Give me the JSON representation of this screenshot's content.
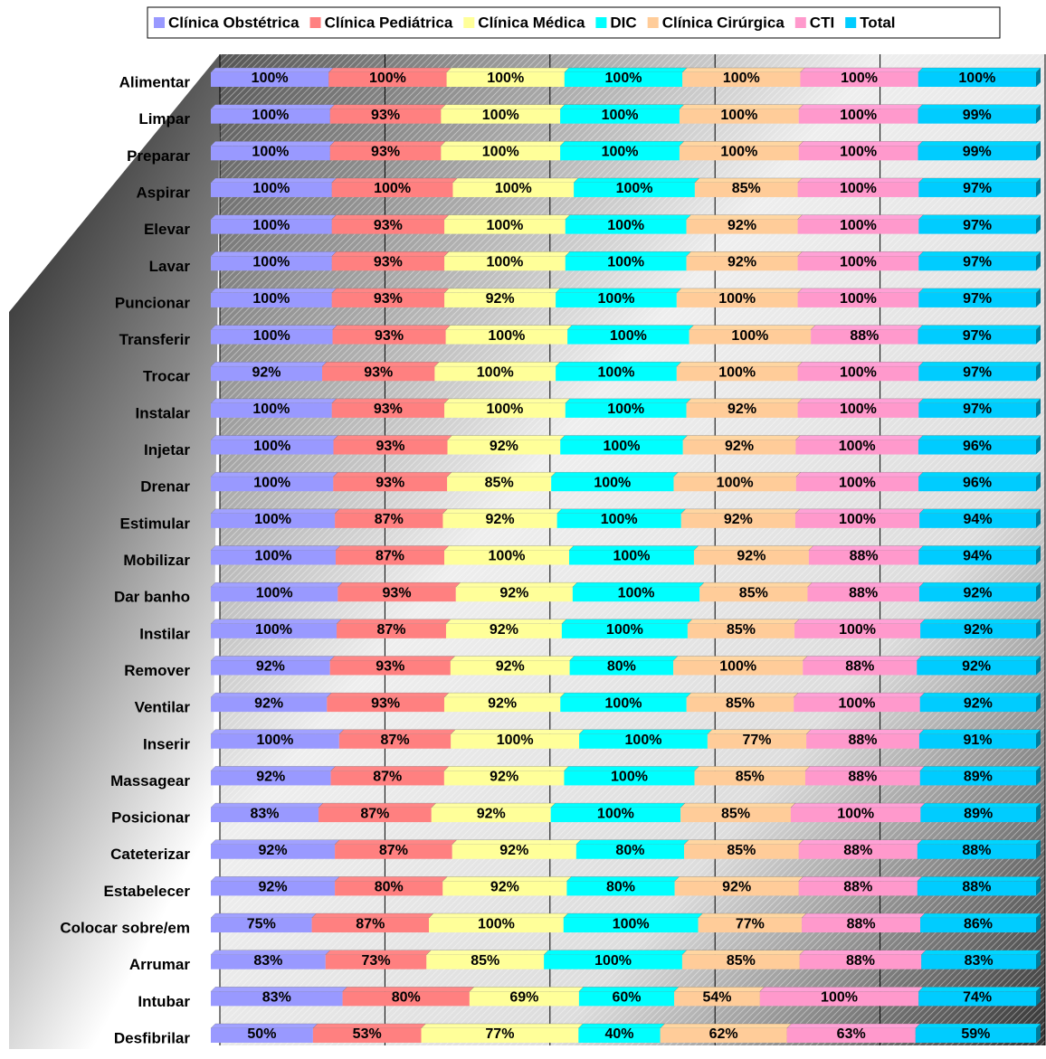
{
  "chart_data": {
    "type": "bar",
    "orientation": "horizontal",
    "stacked": "percent",
    "grid": true,
    "legend": "top",
    "xlim": [
      0,
      100
    ],
    "xticks": [
      0,
      20,
      40,
      60,
      80,
      100
    ],
    "categories": [
      "Alimentar",
      "Limpar",
      "Preparar",
      "Aspirar",
      "Elevar",
      "Lavar",
      "Puncionar",
      "Transferir",
      "Trocar",
      "Instalar",
      "Injetar",
      "Drenar",
      "Estimular",
      "Mobilizar",
      "Dar banho",
      "Instilar",
      "Remover",
      "Ventilar",
      "Inserir",
      "Massagear",
      "Posicionar",
      "Cateterizar",
      "Estabelecer",
      "Colocar sobre/em",
      "Arrumar",
      "Intubar",
      "Desfibrilar"
    ],
    "series": [
      {
        "name": "Clínica Obstétrica",
        "color": "#9999ff",
        "values": [
          100,
          100,
          100,
          100,
          100,
          100,
          100,
          100,
          92,
          100,
          100,
          100,
          100,
          100,
          100,
          100,
          92,
          92,
          100,
          92,
          83,
          92,
          92,
          75,
          83,
          83,
          50
        ],
        "value_labels": [
          "100%",
          "100%",
          "100%",
          "100%",
          "100%",
          "100%",
          "100%",
          "100%",
          "92%",
          "100%",
          "100%",
          "100%",
          "100%",
          "100%",
          "100%",
          "100%",
          "92%",
          "92%",
          "100%",
          "92%",
          "83%",
          "92%",
          "92%",
          "75%",
          "83%",
          "83%",
          "50%"
        ]
      },
      {
        "name": "Clínica Pediátrica",
        "color": "#ff8080",
        "values": [
          100,
          93,
          93,
          100,
          93,
          93,
          93,
          93,
          93,
          93,
          93,
          93,
          87,
          87,
          93,
          87,
          93,
          93,
          87,
          87,
          87,
          87,
          80,
          87,
          73,
          80,
          53
        ],
        "value_labels": [
          "100%",
          "93%",
          "93%",
          "100%",
          "93%",
          "93%",
          "93%",
          "93%",
          "93%",
          "93%",
          "93%",
          "93%",
          "87%",
          "87%",
          "93%",
          "87%",
          "93%",
          "93%",
          "87%",
          "87%",
          "87%",
          "87%",
          "80%",
          "87%",
          "73%",
          "80%",
          "53%"
        ]
      },
      {
        "name": "Clínica Médica",
        "color": "#ffff99",
        "values": [
          100,
          100,
          100,
          100,
          100,
          100,
          92,
          100,
          100,
          100,
          92,
          85,
          92,
          100,
          92,
          92,
          92,
          92,
          100,
          92,
          92,
          92,
          92,
          100,
          85,
          69,
          77
        ],
        "value_labels": [
          "100%",
          "100%",
          "100%",
          "100%",
          "100%",
          "100%",
          "92%",
          "100%",
          "100%",
          "100%",
          "92%",
          "85%",
          "92%",
          "100%",
          "92%",
          "92%",
          "92%",
          "92%",
          "100%",
          "92%",
          "92%",
          "92%",
          "92%",
          "100%",
          "85%",
          "69%",
          "77%"
        ]
      },
      {
        "name": "DIC",
        "color": "#00ffff",
        "values": [
          100,
          100,
          100,
          100,
          100,
          100,
          100,
          100,
          100,
          100,
          100,
          100,
          100,
          100,
          100,
          100,
          80,
          100,
          100,
          100,
          100,
          80,
          80,
          100,
          100,
          60,
          40
        ],
        "value_labels": [
          "100%",
          "100%",
          "100%",
          "100%",
          "100%",
          "100%",
          "100%",
          "100%",
          "100%",
          "100%",
          "100%",
          "100%",
          "100%",
          "100%",
          "100%",
          "100%",
          "80%",
          "100%",
          "100%",
          "100%",
          "100%",
          "80%",
          "80%",
          "100%",
          "100%",
          "60%",
          "40%"
        ]
      },
      {
        "name": "Clínica Cirúrgica",
        "color": "#ffcc99",
        "values": [
          100,
          100,
          100,
          85,
          92,
          92,
          100,
          100,
          100,
          92,
          92,
          100,
          92,
          92,
          85,
          85,
          100,
          85,
          77,
          85,
          85,
          85,
          92,
          77,
          85,
          54,
          62
        ],
        "value_labels": [
          "100%",
          "100%",
          "100%",
          "85%",
          "92%",
          "92%",
          "100%",
          "100%",
          "100%",
          "92%",
          "92%",
          "100%",
          "92%",
          "92%",
          "85%",
          "85%",
          "100%",
          "85%",
          "77%",
          "85%",
          "85%",
          "85%",
          "92%",
          "77%",
          "85%",
          "54%",
          "62%"
        ]
      },
      {
        "name": "CTI",
        "color": "#ff99cc",
        "values": [
          100,
          100,
          100,
          100,
          100,
          100,
          100,
          88,
          100,
          100,
          100,
          100,
          100,
          88,
          88,
          100,
          88,
          100,
          88,
          88,
          100,
          88,
          88,
          88,
          88,
          100,
          63
        ],
        "value_labels": [
          "100%",
          "100%",
          "100%",
          "100%",
          "100%",
          "100%",
          "100%",
          "88%",
          "100%",
          "100%",
          "100%",
          "100%",
          "100%",
          "88%",
          "88%",
          "100%",
          "88%",
          "100%",
          "88%",
          "88%",
          "100%",
          "88%",
          "88%",
          "88%",
          "88%",
          "100%",
          "63%"
        ]
      },
      {
        "name": "Total",
        "color": "#00ccff",
        "values": [
          100,
          99,
          99,
          97,
          97,
          97,
          97,
          97,
          97,
          97,
          96,
          96,
          94,
          94,
          92,
          92,
          92,
          92,
          91,
          89,
          89,
          88,
          88,
          86,
          83,
          74,
          59
        ],
        "value_labels": [
          "100%",
          "99%",
          "99%",
          "97%",
          "97%",
          "97%",
          "97%",
          "97%",
          "97%",
          "97%",
          "96%",
          "96%",
          "94%",
          "94%",
          "92%",
          "92%",
          "92%",
          "92%",
          "91%",
          "89%",
          "89%",
          "88%",
          "88%",
          "86%",
          "83%",
          "74%",
          "59%"
        ]
      }
    ]
  }
}
